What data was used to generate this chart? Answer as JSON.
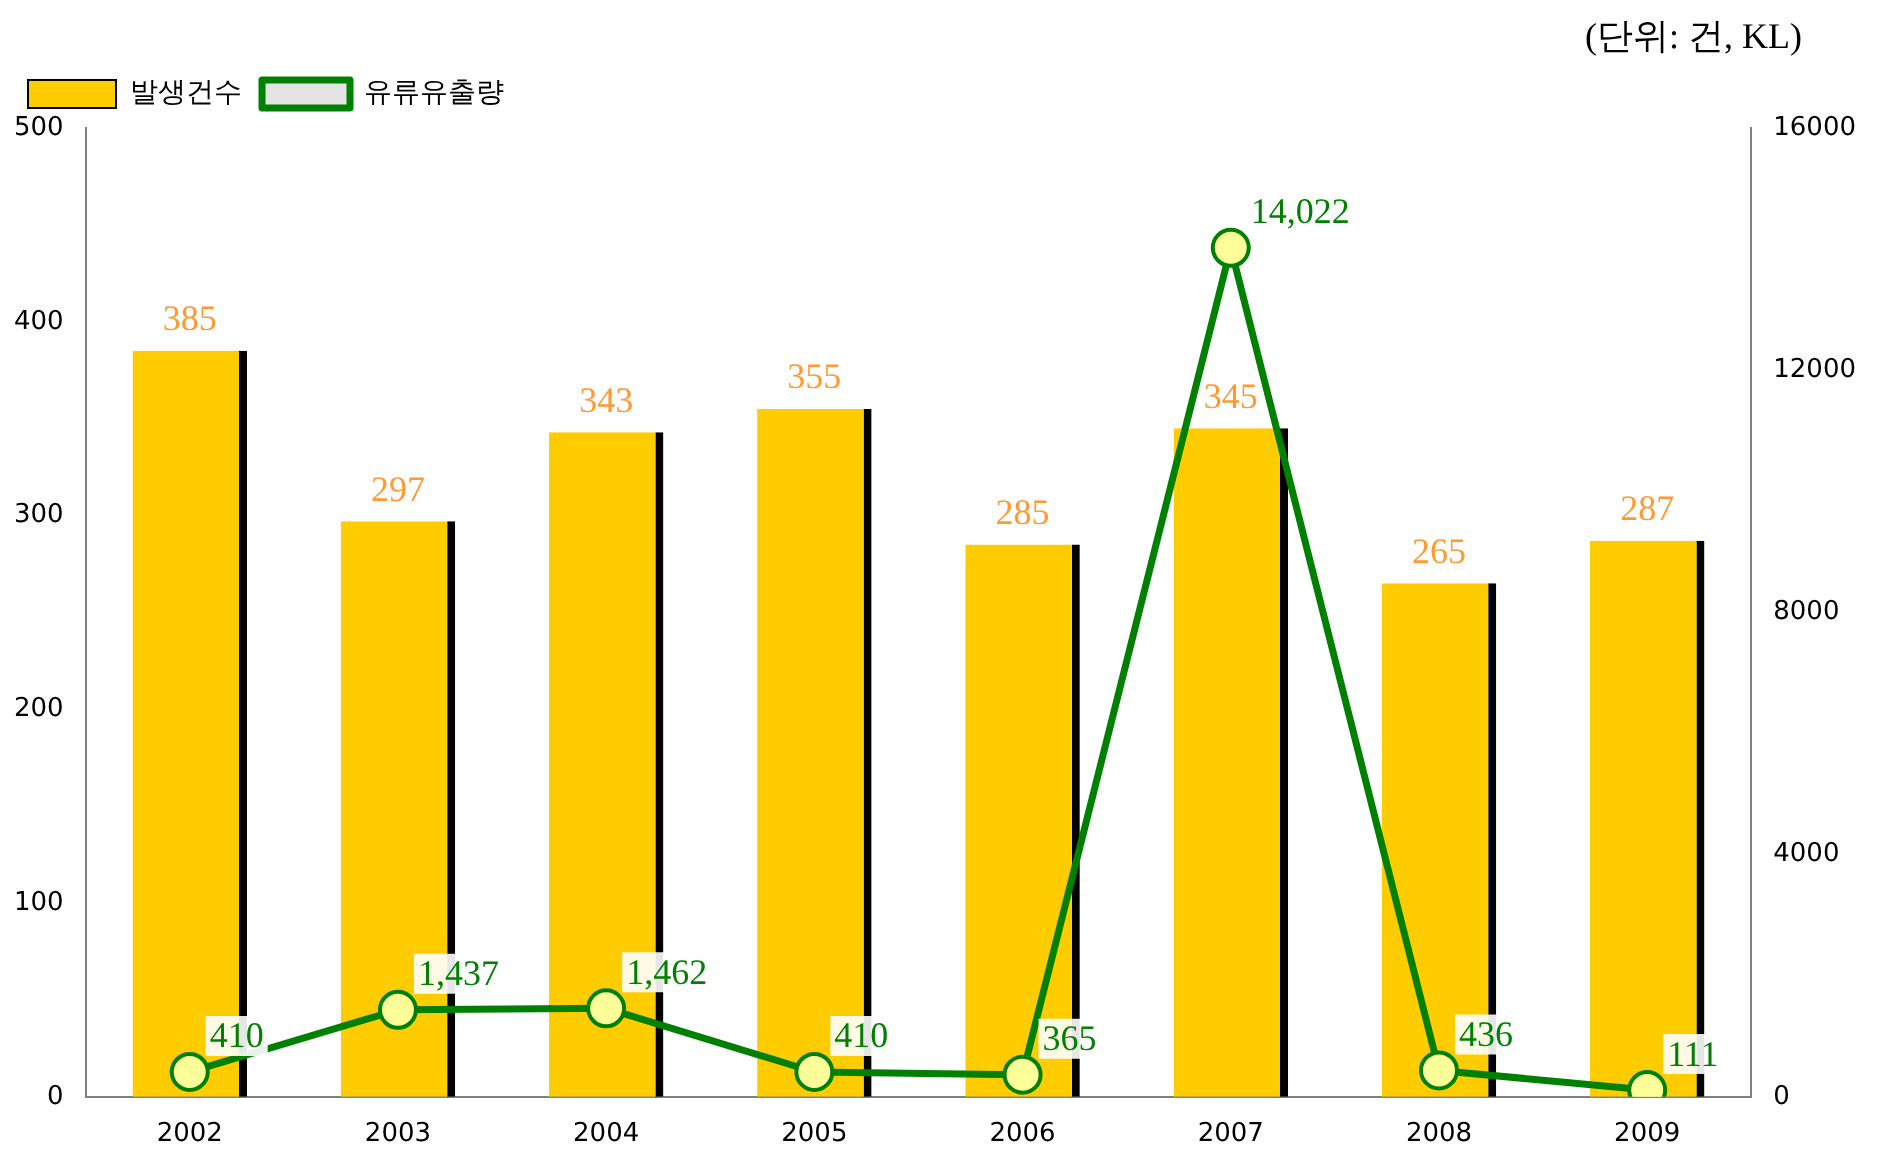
{
  "chart_data": {
    "type": "bar",
    "categories": [
      "2002",
      "2003",
      "2004",
      "2005",
      "2006",
      "2007",
      "2008",
      "2009"
    ],
    "series": [
      {
        "name": "발생건수",
        "color": "#ffcc00",
        "values": [
          385,
          297,
          343,
          355,
          285,
          345,
          265,
          287
        ]
      },
      {
        "name": "유류유출량",
        "type": "line",
        "axis": "y2",
        "color": "#008000",
        "marker": "circle",
        "values": [
          410,
          1437,
          1462,
          410,
          365,
          14022,
          436,
          111
        ],
        "value_labels": [
          "410",
          "1,437",
          "1,462",
          "410",
          "365",
          "14,022",
          "436",
          "111"
        ]
      }
    ],
    "ylim": [
      0,
      500
    ],
    "yticks": [
      0,
      100,
      200,
      300,
      400,
      500
    ],
    "y2lim": [
      0,
      16000
    ],
    "y2ticks": [
      0,
      4000,
      8000,
      12000,
      16000
    ],
    "data_labels": true,
    "grid": false,
    "legend": "top left",
    "annotations": [
      "(단위: 건, KL)"
    ]
  }
}
